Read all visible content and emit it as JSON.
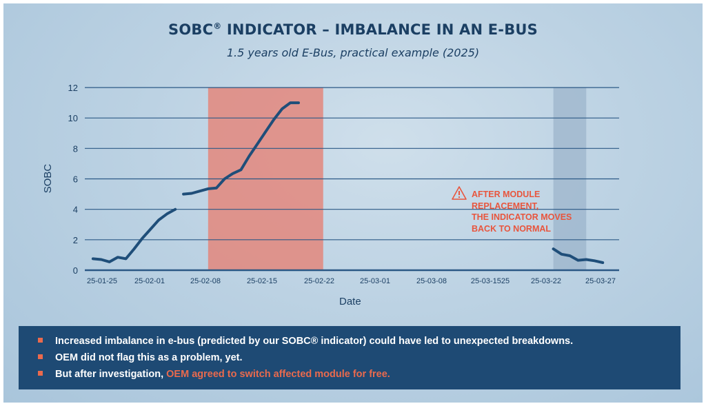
{
  "title": {
    "text": "SOBC",
    "sup": "®",
    "rest": " INDICATOR – IMBALANCE IN AN E-BUS"
  },
  "subtitle": "1.5 years old E-Bus, practical example (2025)",
  "annotation": {
    "icon": "warning-triangle-icon",
    "text": "AFTER MODULE\nREPLACEMENT,\nTHE INDICATOR MOVES\nBACK TO NORMAL",
    "color": "#e8553d"
  },
  "bullets": [
    {
      "text": "Increased imbalance in e-bus (predicted by our SOBC® indicator) could have led to unexpected breakdowns."
    },
    {
      "text": "OEM did not flag this as a problem, yet."
    },
    {
      "text": "But after investigation, ",
      "highlight": "OEM agreed to switch affected module for free."
    }
  ],
  "colors": {
    "line": "#1f4e79",
    "grid": "#2b5885",
    "highlight_red": "#e3877c",
    "highlight_blue": "#8fa9c3",
    "accent": "#ea6a4d",
    "box": "#1e4a74"
  },
  "chart_data": {
    "type": "line",
    "title": "",
    "xlabel": "Date",
    "ylabel": "SOBC",
    "ylim": [
      0,
      12
    ],
    "yticks": [
      0,
      2,
      4,
      6,
      8,
      10,
      12
    ],
    "xlim": [
      "2025-01-24",
      "2025-03-30"
    ],
    "xtick_labels": [
      "25-01-25",
      "25-02-01",
      "25-02-08",
      "25-02-15",
      "25-02-22",
      "25-03-01",
      "25-03-08",
      "25-03-1525",
      "25-03-22",
      "25-03-27"
    ],
    "grid": "horizontal",
    "shaded_regions": [
      {
        "from": "2025-02-08",
        "to": "2025-02-22",
        "color": "#e3877c"
      },
      {
        "from": "2025-03-22",
        "to": "2025-03-26",
        "color": "#8fa9c3"
      }
    ],
    "segments": [
      {
        "x": [
          "2025-01-25",
          "2025-01-26",
          "2025-01-27",
          "2025-01-28",
          "2025-01-29",
          "2025-01-30",
          "2025-01-31",
          "2025-02-01",
          "2025-02-02",
          "2025-02-03",
          "2025-02-04"
        ],
        "y": [
          0.75,
          0.7,
          0.55,
          0.85,
          0.75,
          1.4,
          2.1,
          2.7,
          3.3,
          3.7,
          4.0
        ]
      },
      {
        "x": [
          "2025-02-05",
          "2025-02-06",
          "2025-02-07",
          "2025-02-08",
          "2025-02-09",
          "2025-02-10",
          "2025-02-11",
          "2025-02-12",
          "2025-02-13",
          "2025-02-14",
          "2025-02-15",
          "2025-02-16",
          "2025-02-17",
          "2025-02-18",
          "2025-02-19"
        ],
        "y": [
          5.0,
          5.05,
          5.2,
          5.35,
          5.4,
          6.0,
          6.35,
          6.6,
          7.5,
          8.3,
          9.1,
          9.9,
          10.6,
          11.0,
          11.0
        ]
      },
      {
        "x": [
          "2025-03-22",
          "2025-03-23",
          "2025-03-24",
          "2025-03-25",
          "2025-03-26",
          "2025-03-27",
          "2025-03-28"
        ],
        "y": [
          1.4,
          1.05,
          0.95,
          0.65,
          0.7,
          0.62,
          0.5
        ]
      }
    ]
  }
}
